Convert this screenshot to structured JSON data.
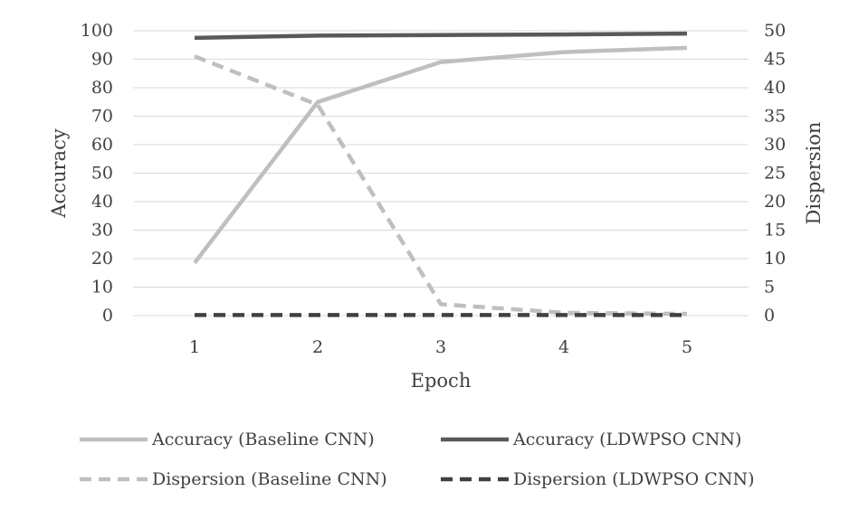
{
  "chart_data": {
    "type": "line",
    "title": "",
    "xlabel": "Epoch",
    "ylabel": "Accuracy",
    "y2label": "Dispersion",
    "categories": [
      "1",
      "2",
      "3",
      "4",
      "5"
    ],
    "ylim": [
      0,
      100
    ],
    "y2lim": [
      0,
      50
    ],
    "y_ticks": [
      "0",
      "10",
      "20",
      "30",
      "40",
      "50",
      "60",
      "70",
      "80",
      "90",
      "100"
    ],
    "y2_ticks": [
      "0",
      "5",
      "10",
      "15",
      "20",
      "25",
      "30",
      "35",
      "40",
      "45",
      "50"
    ],
    "grid": true,
    "legend_position": "bottom",
    "series": [
      {
        "name": "Accuracy (Baseline CNN)",
        "axis": "left",
        "style": "solid",
        "color": "#bfbfbf",
        "values": [
          18.5,
          75,
          89,
          92.5,
          94
        ]
      },
      {
        "name": "Accuracy (LDWPSO CNN)",
        "axis": "left",
        "style": "solid",
        "color": "#595959",
        "values": [
          97.5,
          98.3,
          98.5,
          98.7,
          99
        ]
      },
      {
        "name": "Dispersion (Baseline CNN)",
        "axis": "right",
        "style": "dashed",
        "color": "#bfbfbf",
        "values": [
          45.5,
          37,
          2,
          0.5,
          0.3
        ]
      },
      {
        "name": "Dispersion (LDWPSO CNN)",
        "axis": "right",
        "style": "dashed",
        "color": "#404040",
        "values": [
          0.1,
          0.1,
          0.1,
          0.1,
          0.1
        ]
      }
    ]
  }
}
